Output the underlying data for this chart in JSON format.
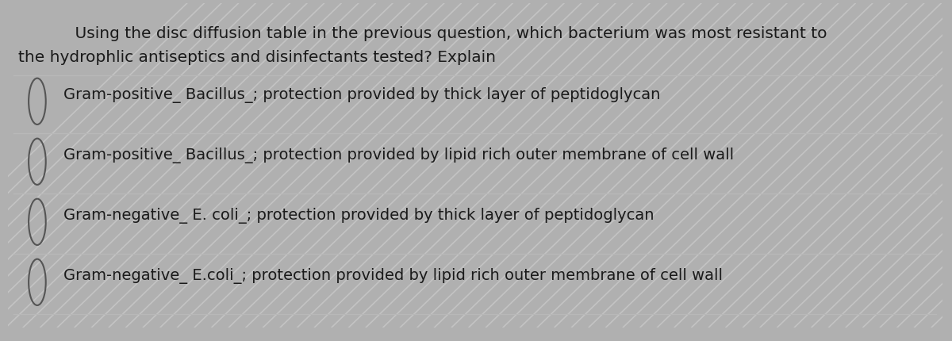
{
  "question_line1": "    Using the disc diffusion table in the previous question, which bacterium was most resistant to",
  "question_line2": "the hydrophlic antiseptics and disinfectants tested? Explain",
  "options": [
    "Gram-positive_ Bacillus_; protection provided by thick layer of peptidoglycan",
    "Gram-positive_ Bacillus_; protection provided by lipid rich outer membrane of cell wall",
    "Gram-negative_ E. coli_; protection provided by thick layer of peptidoglycan",
    "Gram-negative_ E.coli_; protection provided by lipid rich outer membrane of cell wall"
  ],
  "outer_bg_color": "#b0b0b0",
  "inner_bg_color": "#e8e8e8",
  "text_color": "#1a1a1a",
  "line_color": "#b8b8b8",
  "circle_color": "#555555",
  "watermark_color": "#d0d0d0",
  "question_fontsize": 14.5,
  "option_fontsize": 14.0,
  "fig_width": 12.0,
  "fig_height": 4.3
}
